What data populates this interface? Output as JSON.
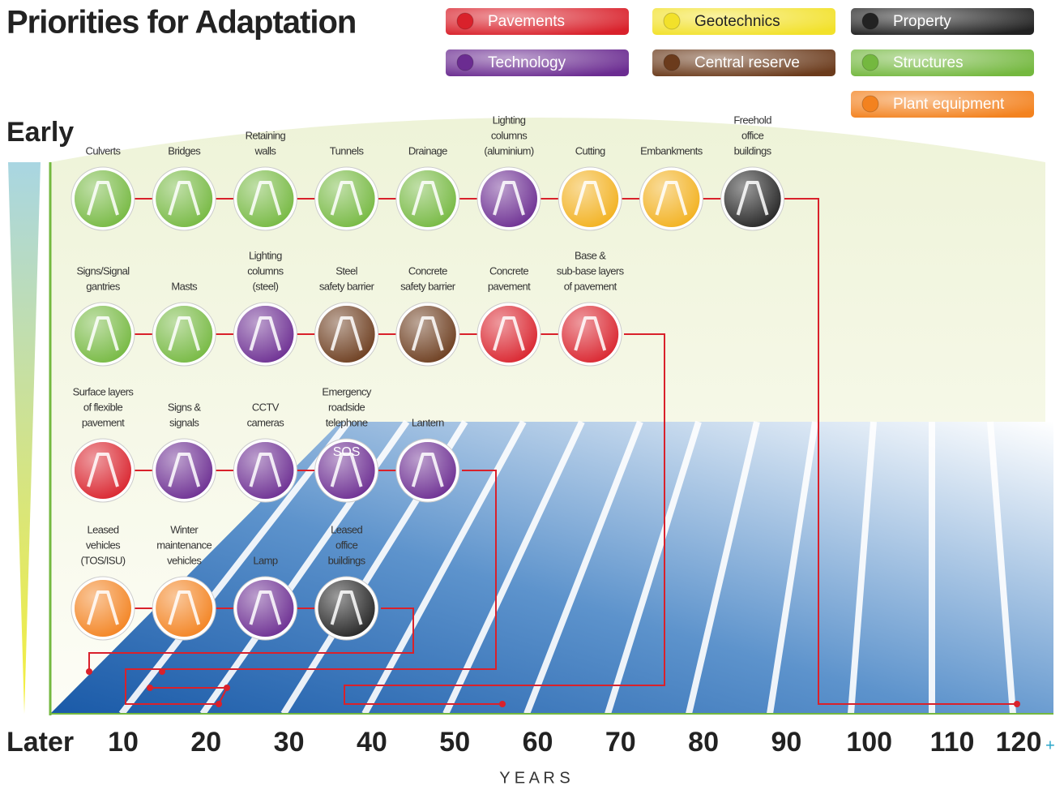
{
  "title": "Priorities for Adaptation",
  "legend": [
    {
      "label": "Pavements",
      "color": "#d9212b"
    },
    {
      "label": "Technology",
      "color": "#6b2c91"
    },
    {
      "label": "Geotechnics",
      "color": "#f2e12a"
    },
    {
      "label": "Central reserve",
      "color": "#6b3b1c"
    },
    {
      "label": "Property",
      "color": "#222222"
    },
    {
      "label": "Structures",
      "color": "#74b83f"
    },
    {
      "label": "Plant equipment",
      "color": "#f3821f"
    }
  ],
  "early_label": "Early",
  "later_label": "Later",
  "axis": {
    "ticks": [
      10,
      20,
      30,
      40,
      50,
      60,
      70,
      80,
      90,
      100,
      110,
      120
    ],
    "plus": "+",
    "label": "Y E A R S"
  },
  "rows": [
    [
      {
        "label": [
          "Culverts"
        ],
        "color": "#74b83f"
      },
      {
        "label": [
          "Bridges"
        ],
        "color": "#74b83f"
      },
      {
        "label": [
          "Retaining",
          "walls"
        ],
        "color": "#74b83f"
      },
      {
        "label": [
          "Tunnels"
        ],
        "color": "#74b83f"
      },
      {
        "label": [
          "Drainage"
        ],
        "color": "#74b83f"
      },
      {
        "label": [
          "Lighting",
          "columns",
          "(aluminium)"
        ],
        "color": "#6b2c91"
      },
      {
        "label": [
          "Cutting"
        ],
        "color": "#f2b01c"
      },
      {
        "label": [
          "Embankments"
        ],
        "color": "#f2b01c"
      },
      {
        "label": [
          "Freehold",
          "office",
          "buildings"
        ],
        "color": "#222222"
      }
    ],
    [
      {
        "label": [
          "Signs/Signal",
          "gantries"
        ],
        "color": "#74b83f"
      },
      {
        "label": [
          "Masts"
        ],
        "color": "#74b83f"
      },
      {
        "label": [
          "Lighting",
          "columns",
          "(steel)"
        ],
        "color": "#6b2c91"
      },
      {
        "label": [
          "Steel",
          "safety barrier"
        ],
        "color": "#6b3b1c"
      },
      {
        "label": [
          "Concrete",
          "safety barrier"
        ],
        "color": "#6b3b1c"
      },
      {
        "label": [
          "Concrete",
          "pavement"
        ],
        "color": "#d9212b"
      },
      {
        "label": [
          "Base &",
          "sub-base layers",
          "of pavement"
        ],
        "color": "#d9212b"
      }
    ],
    [
      {
        "label": [
          "Surface layers",
          "of flexible",
          "pavement"
        ],
        "color": "#d9212b"
      },
      {
        "label": [
          "Signs &",
          "signals"
        ],
        "color": "#6b2c91"
      },
      {
        "label": [
          "CCTV",
          "cameras"
        ],
        "color": "#6b2c91"
      },
      {
        "label": [
          "Emergency",
          "roadside",
          "telephone"
        ],
        "color": "#6b2c91",
        "icon_text": "SOS"
      },
      {
        "label": [
          "Lantern"
        ],
        "color": "#6b2c91"
      }
    ],
    [
      {
        "label": [
          "Leased",
          "vehicles",
          "(TOS/ISU)"
        ],
        "color": "#f3821f"
      },
      {
        "label": [
          "Winter",
          "maintenance",
          "vehicles"
        ],
        "color": "#f3821f"
      },
      {
        "label": [
          "Lamp"
        ],
        "color": "#6b2c91"
      },
      {
        "label": [
          "Leased",
          "office",
          "buildings"
        ],
        "color": "#222222"
      }
    ]
  ]
}
